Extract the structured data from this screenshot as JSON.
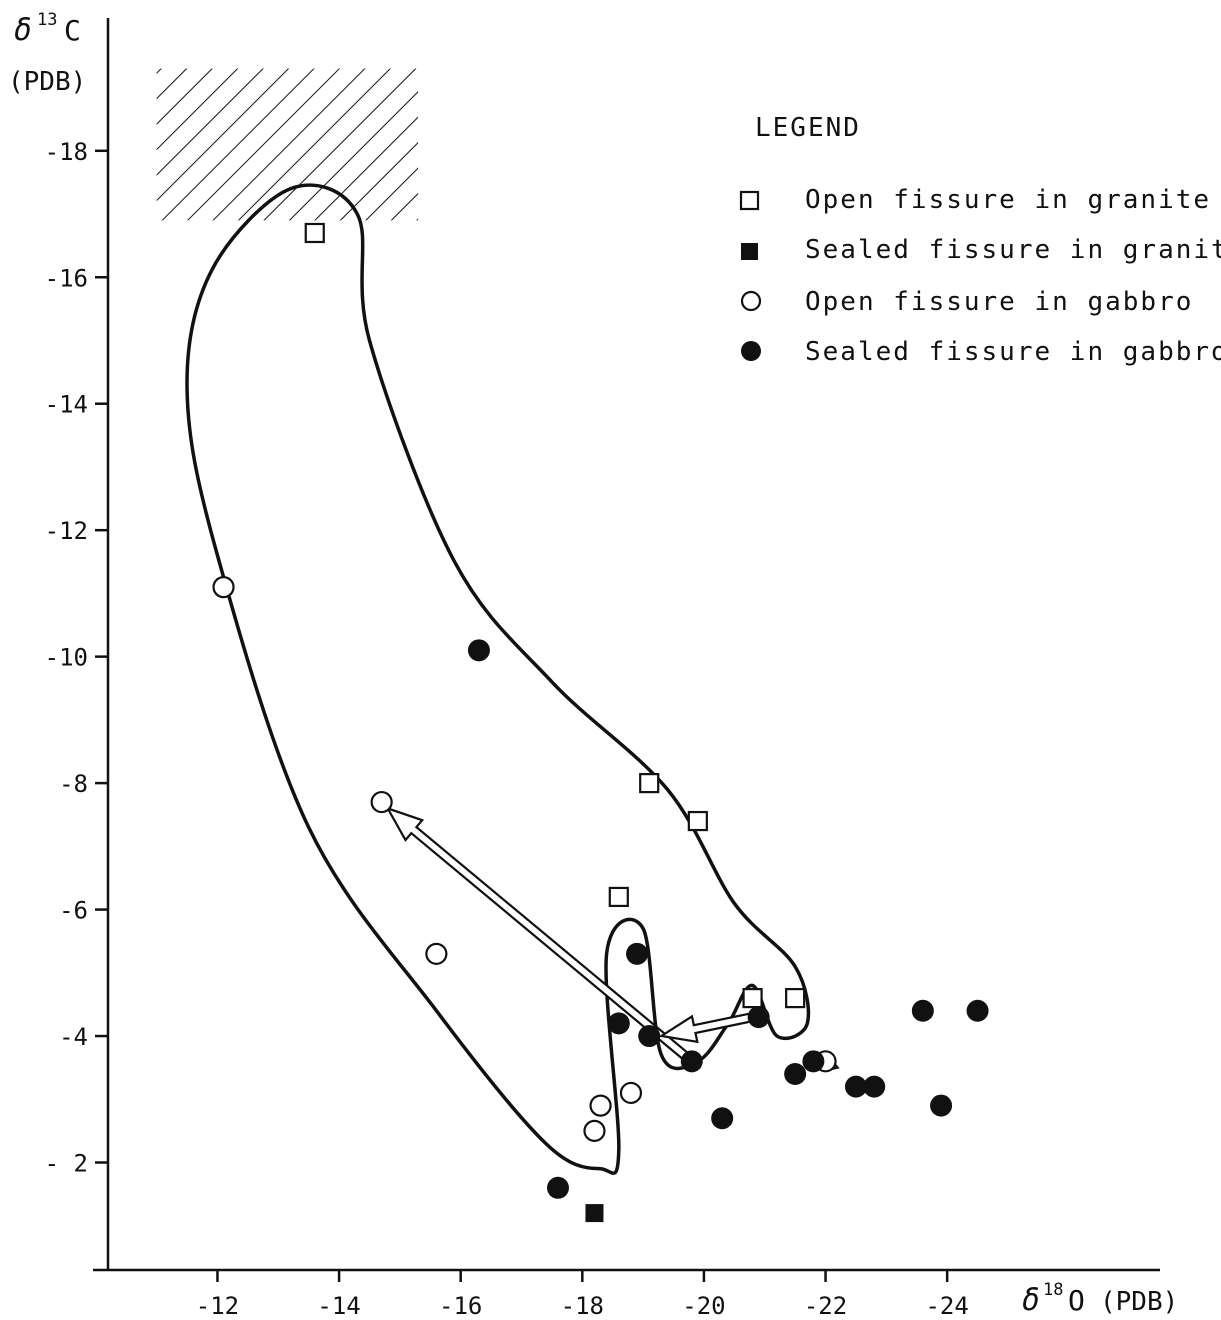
{
  "chart_data": {
    "type": "scatter",
    "title": "",
    "ylabel": {
      "symbol": "δ",
      "sup": "13",
      "element": "C",
      "unit": "(PDB)"
    },
    "xlabel": {
      "symbol": "δ",
      "sup": "18",
      "element": "O",
      "unit": "(PDB)"
    },
    "xlim": [
      -10.2,
      -27.5
    ],
    "ylim": [
      -0.3,
      -20.1
    ],
    "x_ticks": [
      -12,
      -14,
      -16,
      -18,
      -20,
      -22,
      -24
    ],
    "x_tick_labels": [
      "-12",
      "-14",
      "-16",
      "-18",
      "-20",
      "-22",
      "-24"
    ],
    "y_ticks": [
      -2,
      -4,
      -6,
      -8,
      -10,
      -12,
      -14,
      -16,
      -18
    ],
    "y_tick_labels": [
      "- 2",
      "-4",
      "-6",
      "-8",
      "-10",
      "-12",
      "-14",
      "-16",
      "-18"
    ],
    "legend": {
      "title": "LEGEND",
      "placement": "top-right",
      "entries": [
        {
          "marker": "open-square",
          "label": "Open fissure in granite"
        },
        {
          "marker": "filled-square",
          "label": "Sealed fissure in granite"
        },
        {
          "marker": "open-circle",
          "label": "Open fissure in gabbro"
        },
        {
          "marker": "filled-circle",
          "label": "Sealed fissure in gabbro"
        }
      ]
    },
    "series": [
      {
        "name": "Open fissure in granite",
        "marker": "open-square",
        "points": [
          [
            -13.6,
            -16.7
          ],
          [
            -19.1,
            -8.0
          ],
          [
            -19.9,
            -7.4
          ],
          [
            -18.6,
            -6.2
          ],
          [
            -20.8,
            -4.6
          ],
          [
            -21.5,
            -4.6
          ]
        ]
      },
      {
        "name": "Sealed fissure in granite",
        "marker": "filled-square",
        "points": [
          [
            -18.2,
            -1.2
          ]
        ]
      },
      {
        "name": "Open fissure in gabbro",
        "marker": "open-circle",
        "points": [
          [
            -12.1,
            -11.1
          ],
          [
            -14.7,
            -7.7
          ],
          [
            -15.6,
            -5.3
          ],
          [
            -18.8,
            -3.1
          ],
          [
            -18.3,
            -2.9
          ],
          [
            -18.2,
            -2.5
          ],
          [
            -22.0,
            -3.6
          ]
        ]
      },
      {
        "name": "Sealed fissure in gabbro",
        "marker": "filled-circle",
        "points": [
          [
            -16.3,
            -10.1
          ],
          [
            -18.9,
            -5.3
          ],
          [
            -18.6,
            -4.2
          ],
          [
            -19.1,
            -4.0
          ],
          [
            -19.8,
            -3.6
          ],
          [
            -20.9,
            -4.3
          ],
          [
            -21.5,
            -3.4
          ],
          [
            -21.8,
            -3.6
          ],
          [
            -22.5,
            -3.2
          ],
          [
            -22.8,
            -3.2
          ],
          [
            -23.6,
            -4.4
          ],
          [
            -24.5,
            -4.4
          ],
          [
            -23.9,
            -2.9
          ],
          [
            -20.3,
            -2.7
          ],
          [
            -17.6,
            -1.6
          ]
        ]
      }
    ],
    "hatched_region": {
      "x": [
        -11.0,
        -15.3
      ],
      "y": [
        -16.9,
        -19.3
      ]
    },
    "envelopes": [
      {
        "name": "main-field",
        "points": [
          [
            -13.2,
            -17.4
          ],
          [
            -14.3,
            -17.0
          ],
          [
            -14.5,
            -15.0
          ],
          [
            -15.9,
            -11.5
          ],
          [
            -17.5,
            -9.6
          ],
          [
            -19.4,
            -7.9
          ],
          [
            -20.5,
            -6.1
          ],
          [
            -21.5,
            -5.1
          ],
          [
            -21.7,
            -4.2
          ],
          [
            -21.2,
            -4.0
          ],
          [
            -20.8,
            -4.8
          ],
          [
            -20.4,
            -4.2
          ],
          [
            -19.9,
            -3.6
          ],
          [
            -19.3,
            -3.7
          ],
          [
            -19.0,
            -5.7
          ],
          [
            -18.4,
            -5.3
          ],
          [
            -18.6,
            -2.2
          ],
          [
            -18.3,
            -1.9
          ],
          [
            -17.4,
            -2.3
          ],
          [
            -15.6,
            -4.4
          ],
          [
            -13.5,
            -7.3
          ],
          [
            -12.0,
            -11.6
          ],
          [
            -11.5,
            -14.2
          ],
          [
            -11.9,
            -16.1
          ]
        ]
      }
    ],
    "arrows": [
      {
        "from": [
          -19.8,
          -3.6
        ],
        "to": [
          -14.8,
          -7.6
        ]
      },
      {
        "from": [
          -20.8,
          -4.3
        ],
        "to": [
          -19.3,
          -4.0
        ]
      },
      {
        "from": [
          -21.9,
          -3.6
        ],
        "to": [
          -22.2,
          -3.5
        ]
      }
    ]
  }
}
